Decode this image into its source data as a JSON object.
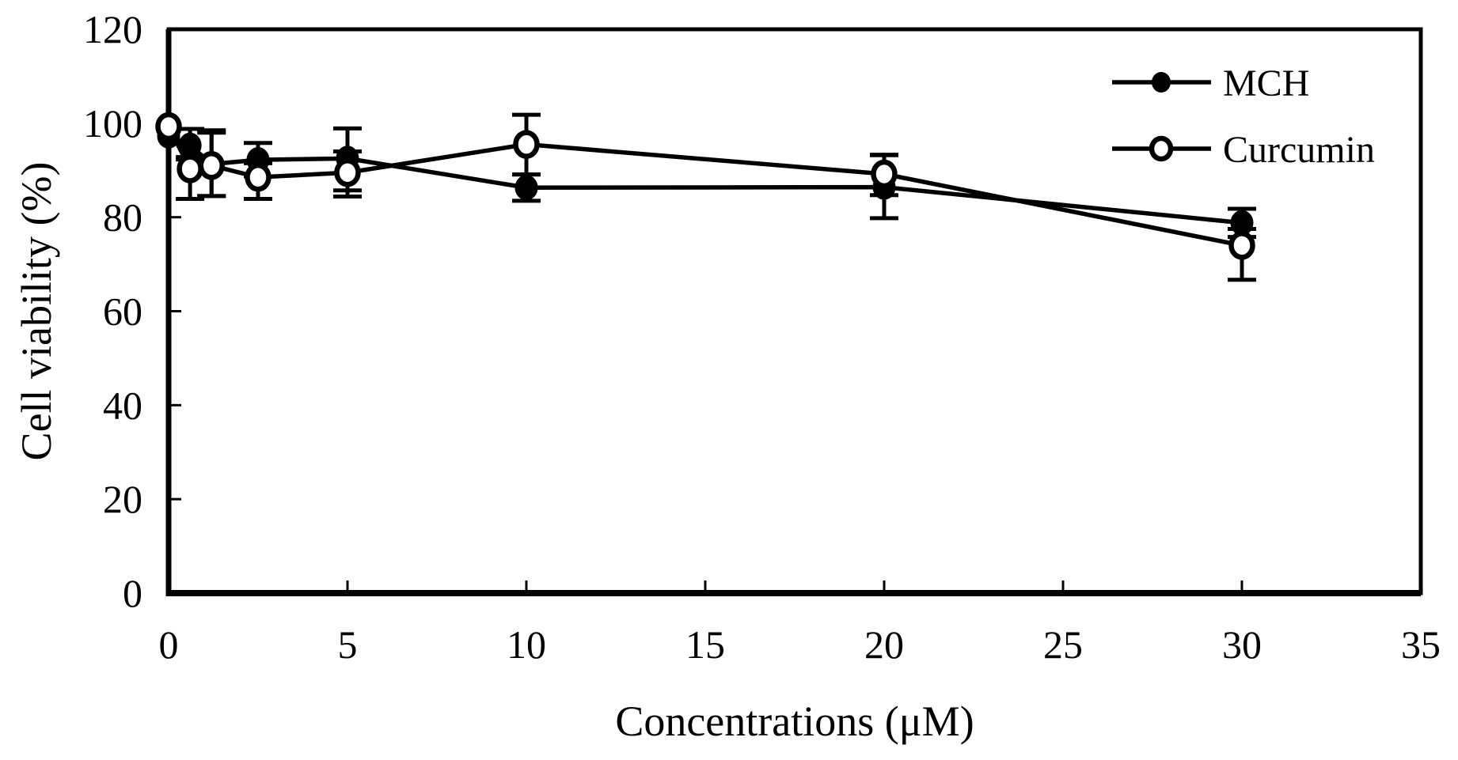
{
  "figure": {
    "background": "#ffffff",
    "foreground": "#000000"
  },
  "chart_data": {
    "type": "line",
    "title": "",
    "xlabel": "Concentrations (μM)",
    "ylabel": "Cell viability (%)",
    "xlim": [
      0,
      35
    ],
    "ylim": [
      0,
      120
    ],
    "xticks": [
      0,
      5,
      10,
      15,
      20,
      25,
      30,
      35
    ],
    "yticks": [
      0,
      20,
      40,
      60,
      80,
      100,
      120
    ],
    "grid": false,
    "legend": {
      "position": "top-right",
      "entries": [
        "MCH",
        "Curcumin"
      ]
    },
    "x": [
      0,
      0.6,
      1.2,
      2.5,
      5,
      10,
      20,
      30
    ],
    "series": [
      {
        "name": "MCH",
        "marker": "filled-circle",
        "color": "#000000",
        "values": [
          97.3,
          95.3,
          91.3,
          92.2,
          92.5,
          86.3,
          86.4,
          78.8
        ],
        "err_up": [
          0,
          3.5,
          7.2,
          3.6,
          6.4,
          2.8,
          6.8,
          3.0
        ],
        "err_down": [
          0,
          3.0,
          6.8,
          3.5,
          6.8,
          2.8,
          6.6,
          3.0
        ]
      },
      {
        "name": "Curcumin",
        "marker": "open-circle",
        "color": "#000000",
        "values": [
          99.3,
          90.3,
          91.0,
          88.5,
          89.5,
          95.5,
          89.2,
          74.0
        ],
        "err_up": [
          0,
          2.5,
          7.0,
          3.0,
          4.5,
          6.3,
          4.1,
          3.5
        ],
        "err_down": [
          0,
          6.4,
          6.5,
          4.6,
          5.1,
          6.4,
          4.5,
          7.3
        ]
      }
    ]
  }
}
